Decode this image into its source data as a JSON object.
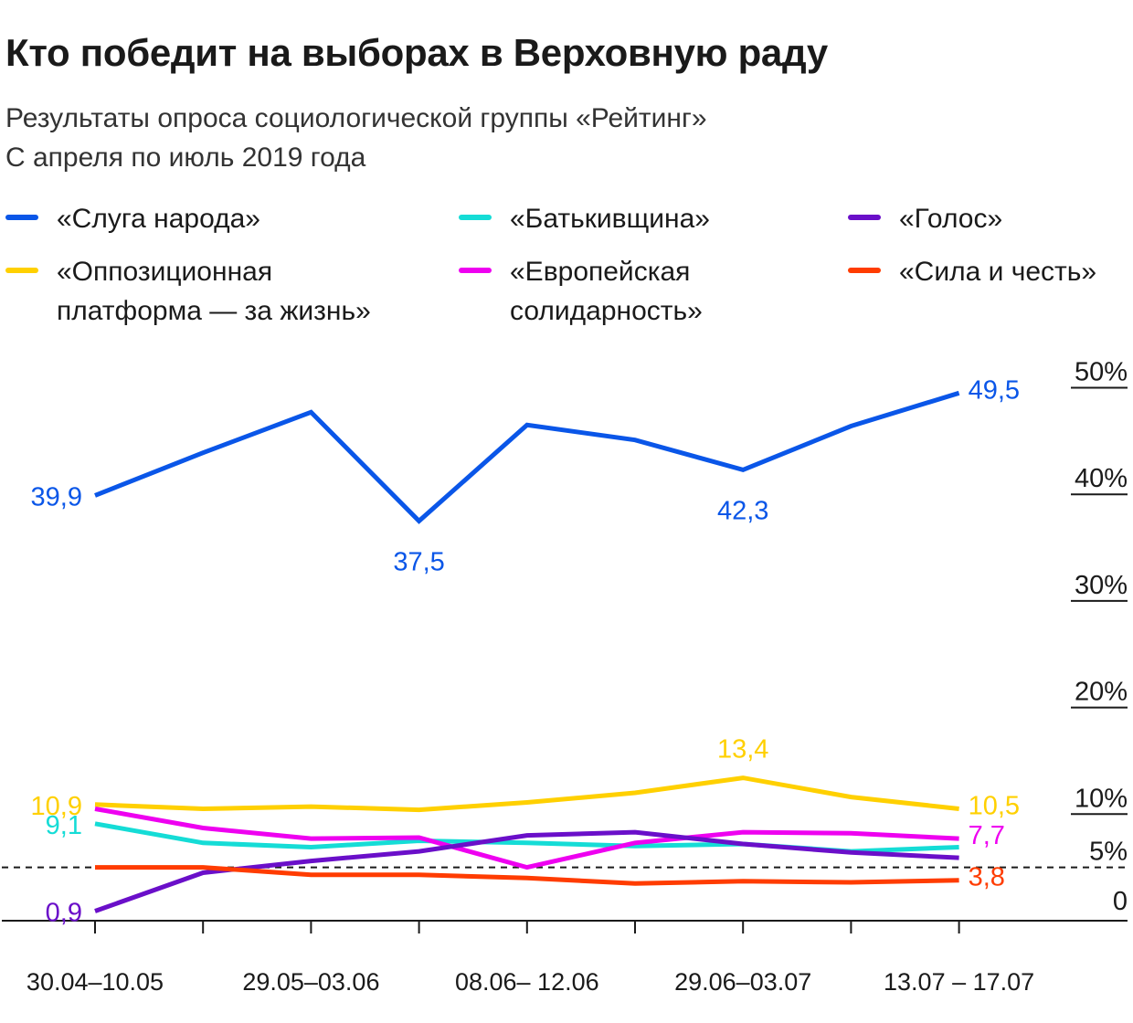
{
  "header": {
    "title": "Кто победит на выборах в Верховную раду",
    "subtitle_line1": "Результаты опроса социологической группы  «Рейтинг»",
    "subtitle_line2": "С апреля по июль 2019 года"
  },
  "legend": [
    {
      "label": "«Слуга народа»",
      "color": "#0a56e8"
    },
    {
      "label": "«Батькивщина»",
      "color": "#15dcd6"
    },
    {
      "label": "«Голос»",
      "color": "#6a0fc9"
    },
    {
      "label": "«Оппозиционная\nплатформа — за жизнь»",
      "color": "#ffd000"
    },
    {
      "label": "«Европейская\nсолидарность»",
      "color": "#ee00f0"
    },
    {
      "label": "«Сила и честь»",
      "color": "#ff3c00"
    }
  ],
  "chart_data": {
    "type": "line",
    "title": "Кто победит на выборах в Верховную раду",
    "ylabel": "%",
    "ylim": [
      0,
      50
    ],
    "y_ticks": [
      {
        "value": 0,
        "label": "0"
      },
      {
        "value": 5,
        "label": "5%"
      },
      {
        "value": 10,
        "label": "10%"
      },
      {
        "value": 20,
        "label": "20%"
      },
      {
        "value": 30,
        "label": "30%"
      },
      {
        "value": 40,
        "label": "40%"
      },
      {
        "value": 50,
        "label": "50%"
      }
    ],
    "threshold": 5,
    "x_tick_labels": [
      {
        "index": 0,
        "label": "30.04–10.05"
      },
      {
        "index": 2,
        "label": "29.05–03.06"
      },
      {
        "index": 4,
        "label": "08.06– 12.06"
      },
      {
        "index": 6,
        "label": "29.06–03.07"
      },
      {
        "index": 8,
        "label": "13.07 – 17.07"
      }
    ],
    "point_count": 9,
    "series": [
      {
        "name": "«Слуга народа»",
        "color": "#0a56e8",
        "values": [
          39.9,
          43.9,
          47.7,
          37.5,
          46.5,
          45.1,
          42.3,
          46.4,
          49.5
        ]
      },
      {
        "name": "«Оппозиционная платформа — за жизнь»",
        "color": "#ffd000",
        "values": [
          10.9,
          10.5,
          10.7,
          10.4,
          11.1,
          12.0,
          13.4,
          11.6,
          10.5
        ]
      },
      {
        "name": "«Батькивщина»",
        "color": "#15dcd6",
        "values": [
          9.1,
          7.3,
          6.9,
          7.5,
          7.3,
          7.0,
          7.2,
          6.5,
          6.9
        ]
      },
      {
        "name": "«Европейская солидарность»",
        "color": "#ee00f0",
        "values": [
          10.5,
          8.7,
          7.7,
          7.8,
          5.0,
          7.3,
          8.3,
          8.2,
          7.7
        ]
      },
      {
        "name": "«Голос»",
        "color": "#6a0fc9",
        "values": [
          0.9,
          4.5,
          5.6,
          6.5,
          8.0,
          8.3,
          7.2,
          6.4,
          5.9
        ]
      },
      {
        "name": "«Сила и честь»",
        "color": "#ff3c00",
        "values": [
          5.0,
          5.0,
          4.3,
          4.3,
          4.0,
          3.5,
          3.7,
          3.6,
          3.8
        ]
      }
    ],
    "data_labels": [
      {
        "series": 0,
        "index": 0,
        "text": "39,9",
        "place": "left"
      },
      {
        "series": 0,
        "index": 3,
        "text": "37,5",
        "place": "below"
      },
      {
        "series": 0,
        "index": 6,
        "text": "42,3",
        "place": "below"
      },
      {
        "series": 0,
        "index": 8,
        "text": "49,5",
        "place": "right"
      },
      {
        "series": 1,
        "index": 0,
        "text": "10,9",
        "place": "left"
      },
      {
        "series": 1,
        "index": 6,
        "text": "13,4",
        "place": "above"
      },
      {
        "series": 1,
        "index": 8,
        "text": "10,5",
        "place": "right"
      },
      {
        "series": 2,
        "index": 0,
        "text": "9,1",
        "place": "left"
      },
      {
        "series": 3,
        "index": 8,
        "text": "7,7",
        "place": "right"
      },
      {
        "series": 4,
        "index": 0,
        "text": "0,9",
        "place": "left"
      },
      {
        "series": 5,
        "index": 8,
        "text": "3,8",
        "place": "right"
      }
    ]
  }
}
